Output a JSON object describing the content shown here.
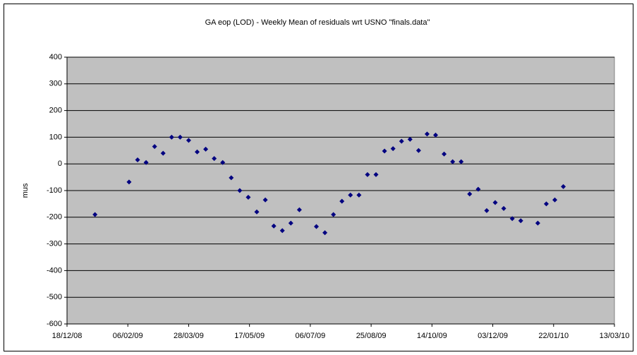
{
  "chart_data": {
    "type": "scatter",
    "title": "GA eop (LOD) - Weekly Mean of residuals wrt USNO \"finals.data\"",
    "y_label": "mus",
    "color": "#000080",
    "grid": true,
    "x": [
      "2009-01-10",
      "2009-02-07",
      "2009-02-14",
      "2009-02-21",
      "2009-02-28",
      "2009-03-07",
      "2009-03-14",
      "2009-03-21",
      "2009-03-28",
      "2009-04-04",
      "2009-04-11",
      "2009-04-18",
      "2009-04-25",
      "2009-05-02",
      "2009-05-09",
      "2009-05-16",
      "2009-05-23",
      "2009-05-30",
      "2009-06-06",
      "2009-06-13",
      "2009-06-20",
      "2009-06-27",
      "2009-07-11",
      "2009-07-18",
      "2009-07-25",
      "2009-08-01",
      "2009-08-08",
      "2009-08-15",
      "2009-08-22",
      "2009-08-29",
      "2009-09-05",
      "2009-09-12",
      "2009-09-19",
      "2009-09-26",
      "2009-10-03",
      "2009-10-10",
      "2009-10-17",
      "2009-10-24",
      "2009-10-31",
      "2009-11-07",
      "2009-11-14",
      "2009-11-21",
      "2009-11-28",
      "2009-12-05",
      "2009-12-12",
      "2009-12-19",
      "2009-12-26",
      "2010-01-09",
      "2010-01-16",
      "2010-01-23",
      "2010-01-30"
    ],
    "values": [
      -190,
      -68,
      15,
      5,
      65,
      40,
      100,
      100,
      88,
      45,
      55,
      20,
      5,
      -52,
      -100,
      -125,
      -180,
      -135,
      -233,
      -250,
      -222,
      -172,
      -235,
      -258,
      -190,
      -140,
      -117,
      -117,
      -40,
      -40,
      48,
      57,
      85,
      92,
      50,
      112,
      108,
      37,
      8,
      8,
      -113,
      -95,
      -175,
      -145,
      -167,
      -205,
      -213,
      -222,
      -150,
      -135,
      -85
    ],
    "xlim": [
      "2008-12-18",
      "2010-03-13"
    ],
    "xticks": [
      {
        "value": "2008-12-18",
        "label": "18/12/08"
      },
      {
        "value": "2009-02-06",
        "label": "06/02/09"
      },
      {
        "value": "2009-03-28",
        "label": "28/03/09"
      },
      {
        "value": "2009-05-17",
        "label": "17/05/09"
      },
      {
        "value": "2009-07-06",
        "label": "06/07/09"
      },
      {
        "value": "2009-08-25",
        "label": "25/08/09"
      },
      {
        "value": "2009-10-14",
        "label": "14/10/09"
      },
      {
        "value": "2009-12-03",
        "label": "03/12/09"
      },
      {
        "value": "2010-01-22",
        "label": "22/01/10"
      },
      {
        "value": "2010-03-13",
        "label": "13/03/10"
      }
    ],
    "ylim": [
      -600,
      400
    ],
    "yticks": [
      -600,
      -500,
      -400,
      -300,
      -200,
      -100,
      0,
      100,
      200,
      300,
      400
    ]
  }
}
